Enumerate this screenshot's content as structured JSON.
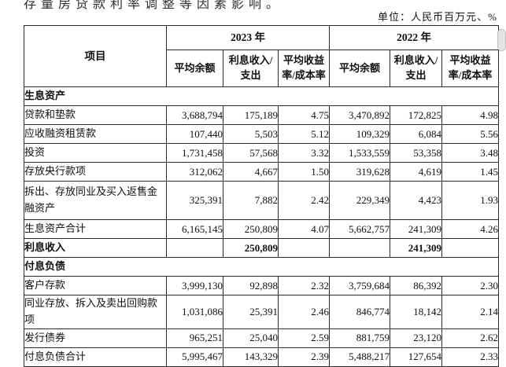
{
  "page": {
    "top_note_partial": "存量房贷款利率调整等因素影响。",
    "unit_label": "单位：人民币百万元、%"
  },
  "colors": {
    "table_border": "#2a2a2a",
    "text": "#0f0f0f",
    "scrollbar_thumb": "#e3e3e3"
  },
  "table": {
    "item_header": "项目",
    "year_groups": [
      {
        "year": "2023 年",
        "columns": [
          "平均余额",
          "利息收入/支出",
          "平均收益率/成本率"
        ]
      },
      {
        "year": "2022 年",
        "columns": [
          "平均余额",
          "利息收入/支出",
          "平均收益率/成本率"
        ]
      }
    ],
    "rows": [
      {
        "type": "section",
        "label": "生息资产"
      },
      {
        "type": "data",
        "label": "贷款和垫款",
        "values": [
          "3,688,794",
          "175,189",
          "4.75",
          "3,470,892",
          "172,825",
          "4.98"
        ]
      },
      {
        "type": "data",
        "label": "应收融资租赁款",
        "values": [
          "107,440",
          "5,503",
          "5.12",
          "109,329",
          "6,084",
          "5.56"
        ]
      },
      {
        "type": "data",
        "label": "投资",
        "values": [
          "1,731,458",
          "57,568",
          "3.32",
          "1,533,559",
          "53,358",
          "3.48"
        ]
      },
      {
        "type": "data",
        "label": "存放央行款项",
        "values": [
          "312,062",
          "4,667",
          "1.50",
          "319,628",
          "4,619",
          "1.45"
        ]
      },
      {
        "type": "data",
        "tall": true,
        "label": "拆出、存放同业及买入返售金融资产",
        "values": [
          "325,391",
          "7,882",
          "2.42",
          "229,349",
          "4,423",
          "1.93"
        ]
      },
      {
        "type": "data",
        "label": "生息资产合计",
        "values": [
          "6,165,145",
          "250,809",
          "4.07",
          "5,662,757",
          "241,309",
          "4.26"
        ]
      },
      {
        "type": "data",
        "bold": true,
        "label": "利息收入",
        "values": [
          "",
          "250,809",
          "",
          "",
          "241,309",
          ""
        ]
      },
      {
        "type": "section",
        "label": "付息负债"
      },
      {
        "type": "data",
        "label": "客户存款",
        "values": [
          "3,999,130",
          "92,898",
          "2.32",
          "3,759,684",
          "86,392",
          "2.30"
        ]
      },
      {
        "type": "data",
        "label": "同业存放、拆入及卖出回购款项",
        "values": [
          "1,031,086",
          "25,391",
          "2.46",
          "846,774",
          "18,142",
          "2.14"
        ]
      },
      {
        "type": "data",
        "label": "发行债券",
        "values": [
          "965,251",
          "25,040",
          "2.59",
          "881,759",
          "23,120",
          "2.62"
        ]
      },
      {
        "type": "data",
        "label": "付息负债合计",
        "values": [
          "5,995,467",
          "143,329",
          "2.39",
          "5,488,217",
          "127,654",
          "2.33"
        ]
      }
    ]
  }
}
